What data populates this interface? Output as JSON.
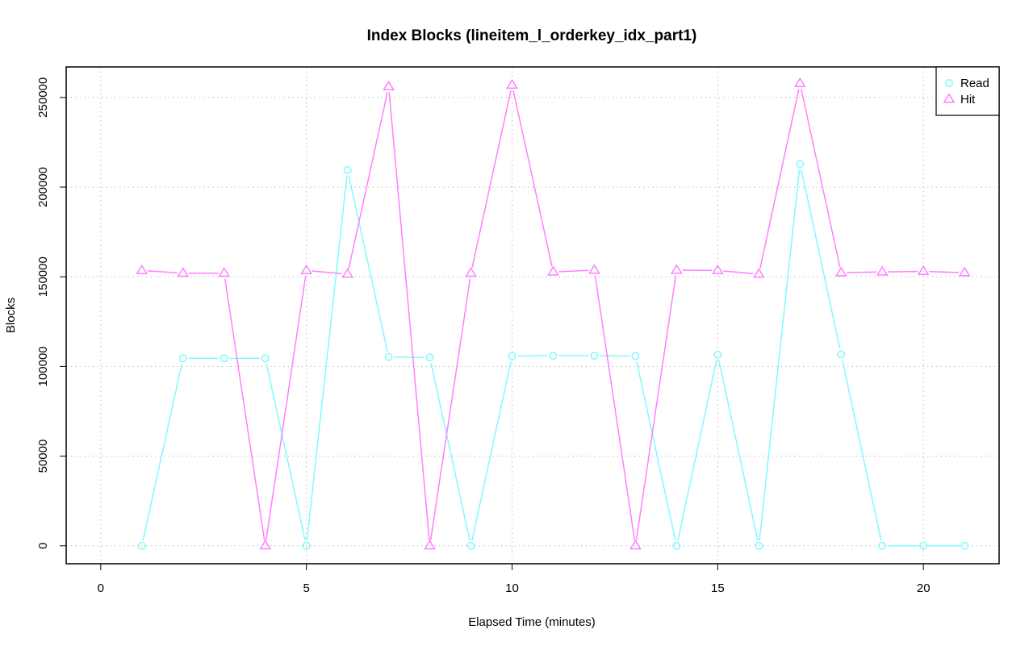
{
  "chart_data": {
    "type": "line",
    "title": "Index Blocks (lineitem_l_orderkey_idx_part1)",
    "xlabel": "Elapsed Time (minutes)",
    "ylabel": "Blocks",
    "xlim": [
      -0.84,
      21.84
    ],
    "ylim": [
      -10000,
      267000
    ],
    "x_ticks": [
      0,
      5,
      10,
      15,
      20
    ],
    "y_ticks": [
      0,
      50000,
      100000,
      150000,
      200000,
      250000
    ],
    "grid": true,
    "legend_position": "top-right",
    "x": [
      1,
      2,
      3,
      4,
      5,
      6,
      7,
      8,
      9,
      10,
      11,
      12,
      13,
      14,
      15,
      16,
      17,
      18,
      19,
      20,
      21
    ],
    "series": [
      {
        "name": "Read",
        "color": "#7ffaff",
        "marker": "circle",
        "values": [
          0,
          104500,
          104500,
          104500,
          0,
          209500,
          105300,
          105000,
          0,
          105800,
          106000,
          106000,
          105800,
          0,
          106500,
          0,
          213000,
          106800,
          0,
          0,
          0
        ]
      },
      {
        "name": "Hit",
        "color": "#ff7fff",
        "marker": "triangle",
        "values": [
          153500,
          152000,
          152000,
          0,
          153500,
          151500,
          256000,
          0,
          152000,
          256900,
          152700,
          153700,
          0,
          153700,
          153500,
          151500,
          257800,
          152300,
          152700,
          153000,
          152300
        ]
      }
    ]
  }
}
